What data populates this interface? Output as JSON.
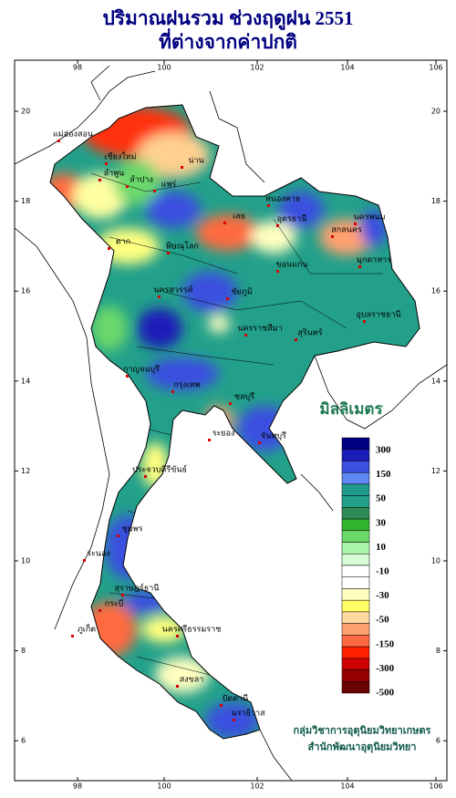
{
  "title": [
    "ปริมาณฝนรวม ช่วงฤดูฝน 2551",
    "ที่ต่างจากค่าปกติ"
  ],
  "axes": {
    "x_ticks": [
      "98",
      "100",
      "102",
      "104",
      "106"
    ],
    "y_ticks": [
      "20",
      "18",
      "16",
      "14",
      "12",
      "10",
      "8",
      "6"
    ]
  },
  "legend": {
    "title": "มิลลิเมตร",
    "colors": [
      "#000080",
      "#1c1cb8",
      "#3a50e0",
      "#5f86f2",
      "#1f9c8c",
      "#22a08a",
      "#2e8b57",
      "#2fb52f",
      "#6ad86a",
      "#a8f4a8",
      "#d6fcd6",
      "#ffffff",
      "#ffffff",
      "#ffffc0",
      "#ffff66",
      "#ffd9a0",
      "#ffa070",
      "#ff6a40",
      "#ff2000",
      "#cc0000",
      "#990000",
      "#6a0000"
    ],
    "labels": [
      "300",
      "150",
      "50",
      "30",
      "10",
      "-10",
      "-30",
      "-50",
      "-150",
      "-300",
      "-500"
    ]
  },
  "places": [
    "แม่ฮ่องสอน",
    "เชียงใหม่",
    "ลำพูน",
    "ลำปาง",
    "แพร่",
    "น่าน",
    "ตาก",
    "พิษณุโลก",
    "เลย",
    "หนองคาย",
    "อุดรธานี",
    "สกลนคร",
    "นครพนม",
    "มุกดาหาร",
    "ขอนแก่น",
    "นครสวรรค์",
    "ชัยภูมิ",
    "นครราชสีมา",
    "สุรินทร์",
    "อุบลราชธานี",
    "กาญจนบุรี",
    "กรุงเทพ",
    "ชลบุรี",
    "ระยอง",
    "จันทบุรี",
    "ประจวบคีรีขันธ์",
    "ชุมพร",
    "ระนอง",
    "สุราษฎร์ธานี",
    "ภูเก็ต",
    "กระบี่",
    "นครศรีธรรมราช",
    "สงขลา",
    "ปัตตานี",
    "นราธิวาส"
  ],
  "credit": [
    "กลุ่มวิชาการอุตุนิยมวิทยาเกษตร",
    "สำนักพัฒนาอุตุนิยมวิทยา"
  ]
}
